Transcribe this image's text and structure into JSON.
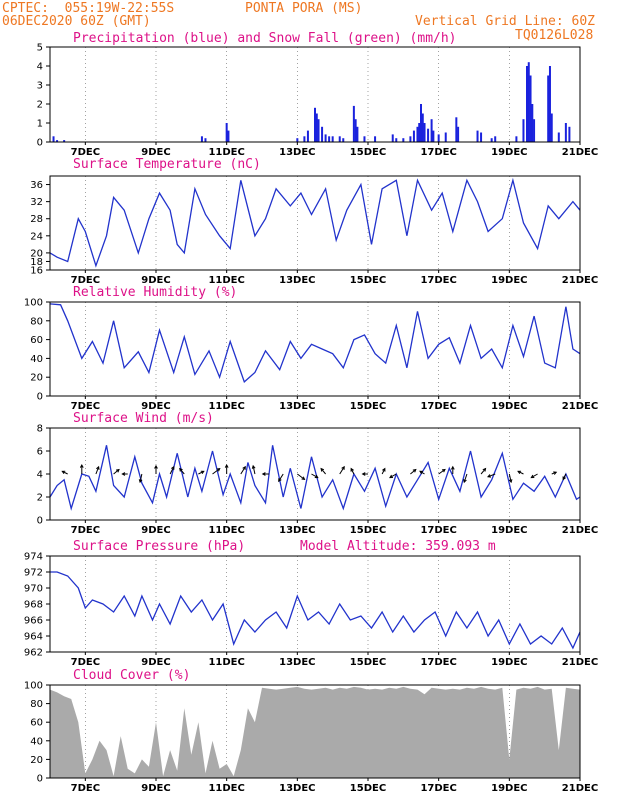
{
  "header": {
    "source_coords": "CPTEC:  055:19W-22:55S",
    "station": "PONTA PORA (MS)",
    "run": "06DEC2020 60Z (GMT)",
    "grid_note": "Vertical Grid Line: 60Z",
    "code": "TQ0126L028"
  },
  "colors": {
    "precip": "#1a22dd",
    "snow": "#22aa22",
    "line": "#2233cc",
    "cloud": "#aaaaaa",
    "title": "#dd1188",
    "header": "#ee7722"
  },
  "x_axis": {
    "ticks": [
      "7DEC",
      "9DEC",
      "11DEC",
      "13DEC",
      "15DEC",
      "17DEC",
      "19DEC",
      "21DEC"
    ],
    "tick_days": [
      1,
      3,
      5,
      7,
      9,
      11,
      13,
      15
    ],
    "range_days": [
      0,
      15
    ]
  },
  "chart_data": [
    {
      "type": "bar",
      "title": "Precipitation (blue) and Snow Fall (green) (mm/h)",
      "ylim": [
        0,
        5
      ],
      "yticks": [
        0,
        1,
        2,
        3,
        4,
        5
      ],
      "series": [
        {
          "name": "Precipitation",
          "points": [
            [
              0.1,
              0.3
            ],
            [
              0.2,
              0.1
            ],
            [
              0.4,
              0.1
            ],
            [
              4.3,
              0.3
            ],
            [
              4.4,
              0.2
            ],
            [
              5.0,
              1.0
            ],
            [
              5.05,
              0.6
            ],
            [
              7.0,
              0.2
            ],
            [
              7.2,
              0.3
            ],
            [
              7.3,
              0.6
            ],
            [
              7.5,
              1.8
            ],
            [
              7.55,
              1.5
            ],
            [
              7.6,
              1.2
            ],
            [
              7.7,
              0.8
            ],
            [
              7.8,
              0.4
            ],
            [
              7.9,
              0.3
            ],
            [
              8.0,
              0.3
            ],
            [
              8.2,
              0.3
            ],
            [
              8.3,
              0.2
            ],
            [
              8.6,
              1.9
            ],
            [
              8.65,
              1.2
            ],
            [
              8.7,
              0.8
            ],
            [
              8.9,
              0.3
            ],
            [
              9.2,
              0.3
            ],
            [
              9.7,
              0.4
            ],
            [
              9.8,
              0.2
            ],
            [
              10.0,
              0.2
            ],
            [
              10.2,
              0.3
            ],
            [
              10.3,
              0.6
            ],
            [
              10.4,
              0.8
            ],
            [
              10.45,
              1.0
            ],
            [
              10.5,
              2.0
            ],
            [
              10.55,
              1.5
            ],
            [
              10.6,
              1.0
            ],
            [
              10.7,
              0.7
            ],
            [
              10.8,
              1.2
            ],
            [
              10.85,
              0.6
            ],
            [
              11.0,
              0.4
            ],
            [
              11.2,
              0.5
            ],
            [
              11.5,
              1.3
            ],
            [
              11.55,
              0.8
            ],
            [
              12.1,
              0.6
            ],
            [
              12.2,
              0.5
            ],
            [
              12.5,
              0.2
            ],
            [
              12.6,
              0.3
            ],
            [
              13.2,
              0.3
            ],
            [
              13.4,
              1.2
            ],
            [
              13.5,
              4.0
            ],
            [
              13.55,
              4.2
            ],
            [
              13.6,
              3.5
            ],
            [
              13.65,
              2.0
            ],
            [
              13.7,
              1.2
            ],
            [
              14.1,
              3.5
            ],
            [
              14.15,
              4.0
            ],
            [
              14.2,
              1.5
            ],
            [
              14.4,
              0.5
            ],
            [
              14.6,
              1.0
            ],
            [
              14.7,
              0.8
            ]
          ]
        },
        {
          "name": "Snow Fall",
          "points": []
        }
      ]
    },
    {
      "type": "line",
      "title": "Surface Temperature (nC)",
      "ylim": [
        16,
        38
      ],
      "yticks": [
        16,
        18,
        20,
        24,
        28,
        32,
        36
      ],
      "x": [
        0,
        0.2,
        0.5,
        0.8,
        1.0,
        1.3,
        1.6,
        1.8,
        2.1,
        2.5,
        2.8,
        3.1,
        3.4,
        3.6,
        3.8,
        4.1,
        4.4,
        4.8,
        5.1,
        5.4,
        5.8,
        6.1,
        6.4,
        6.8,
        7.1,
        7.4,
        7.8,
        8.1,
        8.4,
        8.8,
        9.1,
        9.4,
        9.8,
        10.1,
        10.4,
        10.8,
        11.1,
        11.4,
        11.8,
        12.1,
        12.4,
        12.8,
        13.1,
        13.4,
        13.8,
        14.1,
        14.4,
        14.8,
        15.0
      ],
      "values": [
        20,
        19,
        18,
        28,
        25,
        17,
        24,
        33,
        30,
        20,
        28,
        34,
        30,
        22,
        20,
        35,
        29,
        24,
        21,
        37,
        24,
        28,
        35,
        31,
        34,
        29,
        35,
        23,
        30,
        36,
        22,
        35,
        37,
        24,
        37,
        30,
        34,
        25,
        37,
        32,
        25,
        28,
        37,
        27,
        21,
        31,
        28,
        32,
        30
      ]
    },
    {
      "type": "line",
      "title": "Relative Humidity (%)",
      "ylim": [
        0,
        100
      ],
      "yticks": [
        0,
        20,
        40,
        60,
        80,
        100
      ],
      "x": [
        0,
        0.3,
        0.5,
        0.9,
        1.2,
        1.5,
        1.8,
        2.1,
        2.5,
        2.8,
        3.1,
        3.5,
        3.8,
        4.1,
        4.5,
        4.8,
        5.1,
        5.5,
        5.8,
        6.1,
        6.5,
        6.8,
        7.1,
        7.4,
        7.7,
        8.0,
        8.3,
        8.6,
        8.9,
        9.2,
        9.5,
        9.8,
        10.1,
        10.4,
        10.7,
        11.0,
        11.3,
        11.6,
        11.9,
        12.2,
        12.5,
        12.8,
        13.1,
        13.4,
        13.7,
        14.0,
        14.3,
        14.6,
        14.8,
        15.0
      ],
      "values": [
        98,
        97,
        80,
        40,
        58,
        35,
        80,
        30,
        47,
        25,
        70,
        25,
        63,
        23,
        48,
        20,
        58,
        15,
        25,
        48,
        28,
        58,
        40,
        55,
        50,
        45,
        30,
        60,
        65,
        45,
        35,
        75,
        30,
        90,
        40,
        55,
        62,
        35,
        75,
        40,
        50,
        30,
        75,
        42,
        85,
        35,
        30,
        95,
        50,
        45
      ]
    },
    {
      "type": "line",
      "title": "Surface Wind (m/s)",
      "ylim": [
        0,
        8
      ],
      "yticks": [
        0,
        2,
        4,
        6,
        8
      ],
      "x": [
        0,
        0.2,
        0.4,
        0.6,
        0.9,
        1.1,
        1.3,
        1.6,
        1.8,
        2.1,
        2.4,
        2.6,
        2.9,
        3.1,
        3.3,
        3.6,
        3.9,
        4.1,
        4.3,
        4.6,
        4.9,
        5.1,
        5.4,
        5.6,
        5.8,
        6.1,
        6.3,
        6.6,
        6.8,
        7.1,
        7.4,
        7.7,
        8.0,
        8.3,
        8.6,
        8.9,
        9.2,
        9.5,
        9.8,
        10.1,
        10.4,
        10.7,
        11.0,
        11.3,
        11.6,
        11.9,
        12.2,
        12.5,
        12.8,
        13.1,
        13.4,
        13.7,
        14.0,
        14.3,
        14.6,
        14.9,
        15.0
      ],
      "values": [
        2,
        3,
        3.5,
        1,
        4,
        3.8,
        2.5,
        6.5,
        3,
        2,
        5.5,
        3.2,
        1.5,
        4,
        2,
        5.8,
        2,
        4.5,
        2.5,
        6,
        2.2,
        4,
        1.5,
        5,
        3,
        1.5,
        6.5,
        2,
        4.5,
        1,
        5.5,
        2,
        3.5,
        1,
        4,
        2.5,
        4.5,
        1.2,
        4,
        2,
        3.5,
        5,
        1.8,
        4.5,
        2.5,
        6,
        2,
        3.5,
        5.8,
        1.8,
        3.2,
        2.5,
        3.8,
        2,
        4,
        1.8,
        2
      ],
      "arrows": [
        [
          0.5,
          4,
          -0.6,
          0.3
        ],
        [
          0.9,
          4,
          0,
          1
        ],
        [
          1.3,
          4,
          0.3,
          0.8
        ],
        [
          1.8,
          4,
          0.6,
          0.5
        ],
        [
          2.2,
          4,
          -0.6,
          0
        ],
        [
          2.6,
          4,
          -0.2,
          -0.9
        ],
        [
          3.0,
          4,
          0,
          0.9
        ],
        [
          3.4,
          4,
          0.4,
          0.8
        ],
        [
          3.8,
          4,
          -0.5,
          0.6
        ],
        [
          4.2,
          4,
          0.6,
          0.3
        ],
        [
          4.6,
          4,
          0.8,
          0.6
        ],
        [
          5.0,
          4,
          0,
          1
        ],
        [
          5.4,
          4,
          0.5,
          0.8
        ],
        [
          5.8,
          4,
          -0.2,
          0.9
        ],
        [
          6.2,
          4,
          -0.7,
          0
        ],
        [
          6.6,
          4,
          -0.5,
          -0.8
        ],
        [
          7.0,
          4,
          0.8,
          -0.6
        ],
        [
          7.4,
          4,
          0.7,
          -0.4
        ],
        [
          7.8,
          4,
          -0.5,
          0.6
        ],
        [
          8.2,
          4,
          0.5,
          0.8
        ],
        [
          8.6,
          4,
          -0.3,
          0.6
        ],
        [
          9.0,
          4,
          -0.6,
          0
        ],
        [
          9.4,
          4,
          0.3,
          0.6
        ],
        [
          9.8,
          4,
          -0.7,
          -0.4
        ],
        [
          10.2,
          4,
          0.6,
          0.5
        ],
        [
          10.6,
          4,
          -0.5,
          0.3
        ],
        [
          11.0,
          4,
          0.7,
          0.5
        ],
        [
          11.4,
          4,
          0,
          0.8
        ],
        [
          11.8,
          4,
          -0.3,
          -0.9
        ],
        [
          12.2,
          4,
          0.5,
          0.6
        ],
        [
          12.6,
          4,
          -0.8,
          -0.3
        ],
        [
          13.0,
          4,
          0.2,
          -0.9
        ],
        [
          13.4,
          4,
          -0.6,
          0.3
        ],
        [
          13.8,
          4,
          -0.7,
          -0.4
        ],
        [
          14.2,
          4,
          0.5,
          0.2
        ],
        [
          14.6,
          4,
          -0.3,
          -0.6
        ]
      ]
    },
    {
      "type": "line",
      "title": "Surface Pressure (hPa)",
      "subtitle": "Model Altitude: 359.093 m",
      "ylim": [
        962,
        974
      ],
      "yticks": [
        962,
        964,
        966,
        968,
        970,
        972,
        974
      ],
      "x": [
        0,
        0.2,
        0.5,
        0.8,
        1.0,
        1.2,
        1.5,
        1.8,
        2.1,
        2.4,
        2.6,
        2.9,
        3.1,
        3.4,
        3.7,
        4.0,
        4.3,
        4.6,
        4.9,
        5.2,
        5.5,
        5.8,
        6.1,
        6.4,
        6.7,
        7.0,
        7.3,
        7.6,
        7.9,
        8.2,
        8.5,
        8.8,
        9.1,
        9.4,
        9.7,
        10.0,
        10.3,
        10.6,
        10.9,
        11.2,
        11.5,
        11.8,
        12.1,
        12.4,
        12.7,
        13.0,
        13.3,
        13.6,
        13.9,
        14.2,
        14.5,
        14.8,
        15.0
      ],
      "values": [
        972,
        972,
        971.5,
        970,
        967.5,
        968.5,
        968,
        967,
        969,
        966.5,
        969,
        966,
        968,
        965.5,
        969,
        967,
        968.5,
        966,
        968,
        963,
        966,
        964.5,
        966,
        967,
        965,
        969,
        966,
        967,
        965.5,
        968,
        966,
        966.5,
        965,
        967,
        964.5,
        966.5,
        964.5,
        966,
        967,
        964,
        967,
        965,
        967,
        964,
        966,
        963,
        965.5,
        963,
        964,
        963,
        965,
        962.5,
        964.5
      ]
    },
    {
      "type": "area",
      "title": "Cloud Cover (%)",
      "ylim": [
        0,
        100
      ],
      "yticks": [
        0,
        20,
        40,
        60,
        80,
        100
      ],
      "x": [
        0,
        0.2,
        0.4,
        0.6,
        0.8,
        1.0,
        1.2,
        1.4,
        1.6,
        1.8,
        2.0,
        2.2,
        2.4,
        2.6,
        2.8,
        3.0,
        3.2,
        3.4,
        3.6,
        3.8,
        4.0,
        4.2,
        4.4,
        4.6,
        4.8,
        5.0,
        5.2,
        5.4,
        5.6,
        5.8,
        6.0,
        6.2,
        6.4,
        6.6,
        6.8,
        7.0,
        7.2,
        7.4,
        7.6,
        7.8,
        8.0,
        8.2,
        8.4,
        8.6,
        8.8,
        9.0,
        9.2,
        9.4,
        9.6,
        9.8,
        10.0,
        10.2,
        10.4,
        10.6,
        10.8,
        11.0,
        11.2,
        11.4,
        11.6,
        11.8,
        12.0,
        12.2,
        12.4,
        12.6,
        12.8,
        13.0,
        13.2,
        13.4,
        13.6,
        13.8,
        14.0,
        14.2,
        14.4,
        14.6,
        14.8,
        15.0
      ],
      "values": [
        95,
        92,
        88,
        85,
        60,
        5,
        20,
        40,
        30,
        2,
        45,
        10,
        5,
        20,
        12,
        60,
        2,
        30,
        8,
        75,
        25,
        60,
        5,
        40,
        10,
        15,
        2,
        30,
        75,
        60,
        97,
        96,
        95,
        96,
        97,
        98,
        96,
        95,
        96,
        97,
        95,
        97,
        96,
        98,
        97,
        95,
        96,
        95,
        97,
        96,
        98,
        96,
        95,
        90,
        97,
        96,
        95,
        96,
        95,
        97,
        96,
        98,
        96,
        95,
        97,
        20,
        95,
        97,
        96,
        98,
        95,
        96,
        30,
        97,
        96,
        95
      ]
    }
  ]
}
